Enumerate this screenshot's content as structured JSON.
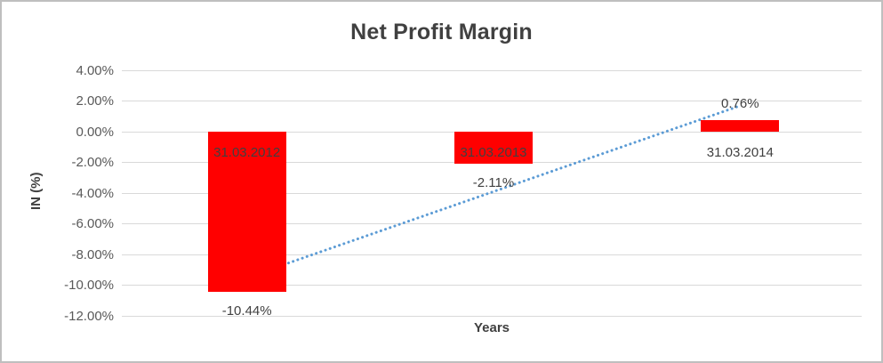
{
  "chart_data": {
    "type": "bar",
    "title": "Net Profit Margin",
    "xlabel": "Years",
    "ylabel": "IN (%)",
    "categories": [
      "31.03.2012",
      "31.03.2013",
      "31.03.2014"
    ],
    "values": [
      -10.44,
      -2.11,
      0.76
    ],
    "data_labels": [
      "-10.44%",
      "-2.11%",
      "0.76%"
    ],
    "ylim": [
      -12,
      4
    ],
    "ytick_step": 2,
    "ytick_labels": [
      "4.00%",
      "2.00%",
      "0.00%",
      "-2.00%",
      "-4.00%",
      "-6.00%",
      "-8.00%",
      "-10.00%",
      "-12.00%"
    ],
    "grid": true,
    "legend": false,
    "bar_color": "#ff0000",
    "grid_color": "#d9d9d9",
    "trendline": {
      "type": "linear",
      "style": "dotted",
      "color": "#5b9bd5",
      "start_pct": -9.5,
      "end_pct": 1.65
    }
  }
}
